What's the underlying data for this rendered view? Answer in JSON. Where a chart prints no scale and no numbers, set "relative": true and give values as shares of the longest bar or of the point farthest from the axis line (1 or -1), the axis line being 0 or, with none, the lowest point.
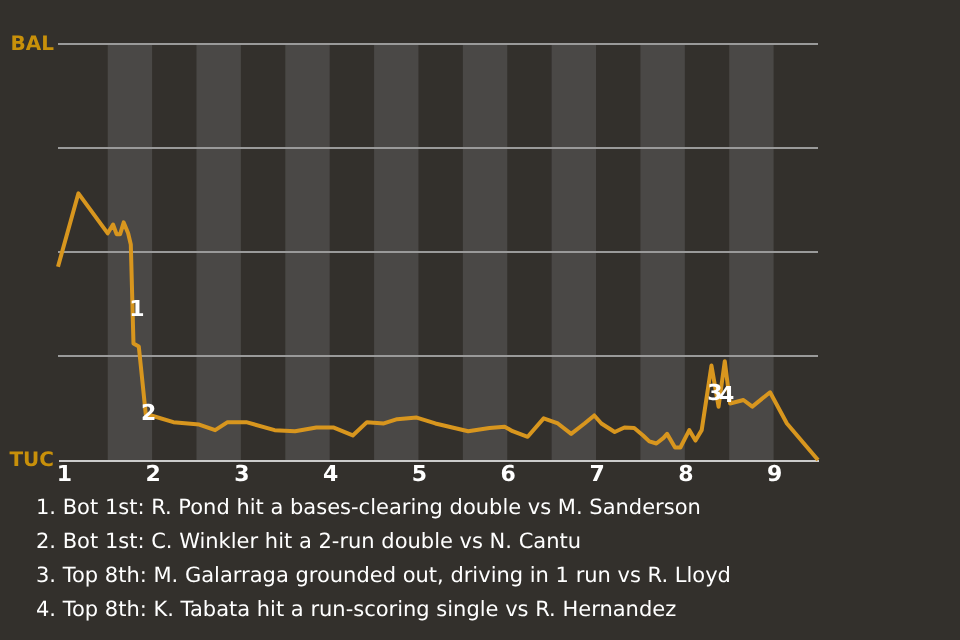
{
  "chart_data": {
    "type": "line",
    "x": [
      0.94,
      1.17,
      1.5,
      1.56,
      1.6,
      1.64,
      1.68,
      1.73,
      1.76,
      1.79,
      1.85,
      1.93,
      1.99,
      2.24,
      2.53,
      2.71,
      2.85,
      3.06,
      3.38,
      3.61,
      3.85,
      4.04,
      4.26,
      4.42,
      4.61,
      4.76,
      4.98,
      5.19,
      5.56,
      5.8,
      5.97,
      6.06,
      6.23,
      6.41,
      6.57,
      6.72,
      6.87,
      6.98,
      7.06,
      7.21,
      7.32,
      7.43,
      7.53,
      7.6,
      7.68,
      7.76,
      7.8,
      7.89,
      7.95,
      8.05,
      8.12,
      8.19,
      8.3,
      8.38,
      8.45,
      8.51,
      8.66,
      8.76,
      8.96,
      9.15,
      9.5
    ],
    "series": [
      {
        "color": "#d8961e",
        "values": [
          0.725,
          1,
          0.85,
          0.883,
          0.847,
          0.847,
          0.891,
          0.85,
          0.808,
          0.437,
          0.426,
          0.167,
          0.167,
          0.142,
          0.133,
          0.112,
          0.142,
          0.142,
          0.112,
          0.108,
          0.122,
          0.122,
          0.092,
          0.142,
          0.137,
          0.153,
          0.159,
          0.137,
          0.108,
          0.12,
          0.125,
          0.108,
          0.087,
          0.156,
          0.137,
          0.098,
          0.137,
          0.167,
          0.137,
          0.105,
          0.122,
          0.12,
          0.092,
          0.07,
          0.062,
          0.083,
          0.098,
          0.047,
          0.047,
          0.112,
          0.073,
          0.112,
          0.354,
          0.2,
          0.37,
          0.212,
          0.225,
          0.2,
          0.254,
          0.137,
          0
        ]
      }
    ],
    "relative": true,
    "xlim": [
      0.94,
      9.5
    ],
    "xticks": [
      1,
      2,
      3,
      4,
      5,
      6,
      7,
      8,
      9
    ],
    "ref_lines": [
      {
        "axis": "y",
        "value": 0.39,
        "color": "#9a9a9a"
      },
      {
        "axis": "y",
        "value": 0.78,
        "color": "#9a9a9a"
      },
      {
        "axis": "y",
        "value": 1.17,
        "color": "#9a9a9a"
      },
      {
        "axis": "y",
        "value": 1.56,
        "color": "#9a9a9a"
      }
    ],
    "bands": [
      {
        "axis": "x",
        "from": 1.5,
        "to": 2,
        "color": "#4a4846"
      },
      {
        "axis": "x",
        "from": 2.5,
        "to": 3,
        "color": "#4a4846"
      },
      {
        "axis": "x",
        "from": 3.5,
        "to": 4,
        "color": "#4a4846"
      },
      {
        "axis": "x",
        "from": 4.5,
        "to": 5,
        "color": "#4a4846"
      },
      {
        "axis": "x",
        "from": 5.5,
        "to": 6,
        "color": "#4a4846"
      },
      {
        "axis": "x",
        "from": 6.5,
        "to": 7,
        "color": "#4a4846"
      },
      {
        "axis": "x",
        "from": 7.5,
        "to": 8,
        "color": "#4a4846"
      },
      {
        "axis": "x",
        "from": 8.5,
        "to": 9,
        "color": "#4a4846"
      }
    ],
    "annotations": [
      {
        "text": "1",
        "x": 1.83,
        "y": 0.563
      },
      {
        "text": "2",
        "x": 1.96,
        "y": 0.173
      },
      {
        "text": "3",
        "x": 8.34,
        "y": 0.248
      },
      {
        "text": "4",
        "x": 8.47,
        "y": 0.24
      },
      "BAL",
      "TUC",
      "1. Bot 1st: R. Pond hit a bases-clearing double vs M. Sanderson",
      "2. Bot 1st: C. Winkler hit a 2-run double vs N. Cantu",
      "3. Top 8th: M. Galarraga grounded out, driving in 1 run vs R. Lloyd",
      "4. Top 8th: K. Tabata hit a run-scoring single vs R. Hernandez"
    ]
  }
}
